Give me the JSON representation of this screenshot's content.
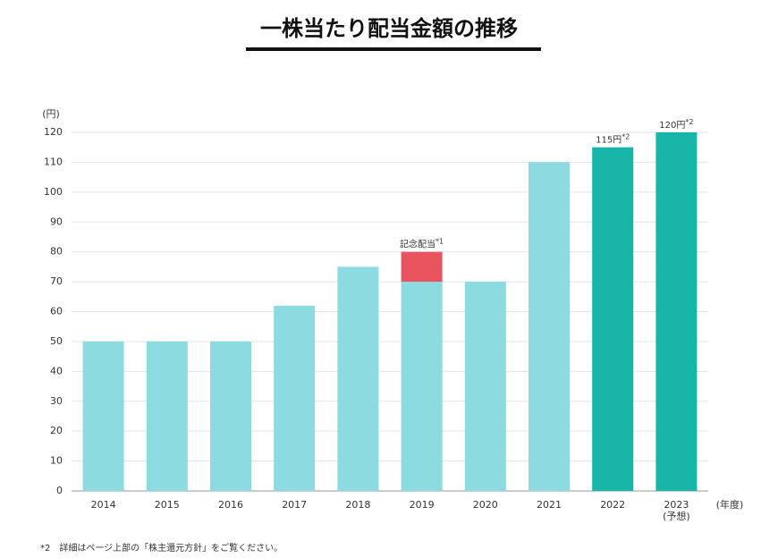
{
  "chart_data": {
    "type": "bar",
    "title": "一株当たり配当金額の推移",
    "y_label": "(円)",
    "x_label": "(年度)",
    "footnote": "*2　詳細はページ上部の「株主還元方針」をご覧ください。",
    "categories": [
      "2014",
      "2015",
      "2016",
      "2017",
      "2018",
      "2019",
      "2020",
      "2021",
      "2022",
      "2023\n(予想)"
    ],
    "series": [
      {
        "values": [
          50,
          50,
          50,
          62,
          75,
          70,
          70,
          110,
          115,
          120
        ],
        "colors": [
          "#8bdbe0",
          "#8bdbe0",
          "#8bdbe0",
          "#8bdbe0",
          "#8bdbe0",
          "#8bdbe0",
          "#8bdbe0",
          "#8bdbe0",
          "#16b5a7",
          "#16b5a7"
        ],
        "value_labels": [
          null,
          null,
          null,
          null,
          null,
          null,
          null,
          null,
          "115円*2",
          "120円*2"
        ]
      },
      {
        "values": [
          null,
          null,
          null,
          null,
          null,
          10,
          null,
          null,
          null,
          null
        ],
        "color": "#e9545f",
        "value_labels": [
          null,
          null,
          null,
          null,
          null,
          "記念配当*1",
          null,
          null,
          null,
          null
        ]
      }
    ],
    "stacked": true,
    "ylim": [
      0,
      120
    ],
    "yticks": [
      0,
      10,
      20,
      30,
      40,
      50,
      60,
      70,
      80,
      90,
      100,
      110,
      120
    ],
    "grid": true
  }
}
